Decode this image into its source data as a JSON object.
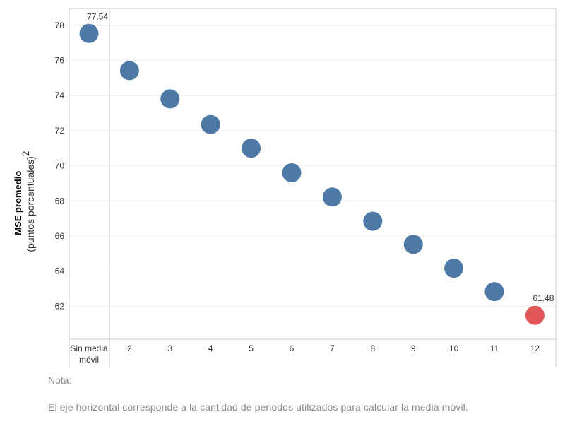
{
  "chart_data": {
    "type": "scatter",
    "ylabel_bold": "MSE promedio",
    "ylabel_sub": "(puntos porcentuales)",
    "ylabel_sup": "2",
    "categories": [
      "Sin media|móvil",
      "2",
      "3",
      "4",
      "5",
      "6",
      "7",
      "8",
      "9",
      "10",
      "11",
      "12"
    ],
    "values": [
      77.54,
      75.42,
      73.81,
      72.35,
      71.0,
      69.6,
      68.22,
      66.84,
      65.52,
      64.16,
      62.83,
      61.48
    ],
    "highlight_index": 11,
    "data_labels": [
      {
        "index": 0,
        "text": "77.54"
      },
      {
        "index": 11,
        "text": "61.48"
      }
    ],
    "yticks": [
      62,
      64,
      66,
      68,
      70,
      72,
      74,
      76,
      78
    ],
    "ylim": [
      60.12,
      78.96
    ],
    "grid": "horizontal",
    "colors": {
      "default": "#4e79a7",
      "highlight": "#e15759"
    }
  },
  "note": {
    "title": "Nota:",
    "text": "El eje horizontal corresponde a la cantidad de periodos utilizados para calcular la media móvil."
  }
}
